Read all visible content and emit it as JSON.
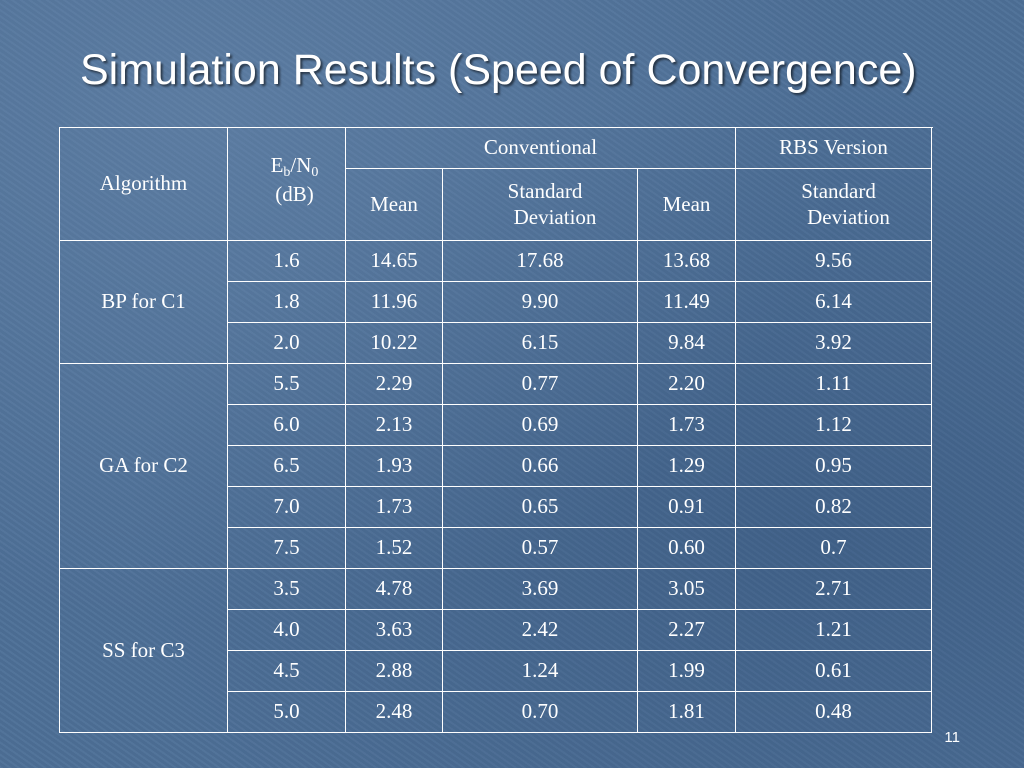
{
  "slide": {
    "title": "Simulation Results (Speed of Convergence)",
    "slide_number": "11"
  },
  "table": {
    "header": {
      "algorithm": "Algorithm",
      "ebn0_main": "E",
      "ebn0_sub_b": "b",
      "ebn0_slash": "/N",
      "ebn0_sub_0": "0",
      "ebn0_unit": "(dB)",
      "conventional": "Conventional",
      "rbs_version": "RBS Version",
      "mean": "Mean",
      "std_line1": "Standard",
      "std_line2": "Deviation"
    },
    "groups": [
      {
        "algorithm": "BP for C1",
        "rows": [
          {
            "ebn0": "1.6",
            "conv_mean": "14.65",
            "conv_std": "17.68",
            "rbs_mean": "13.68",
            "rbs_std": "9.56"
          },
          {
            "ebn0": "1.8",
            "conv_mean": "11.96",
            "conv_std": "9.90",
            "rbs_mean": "11.49",
            "rbs_std": "6.14"
          },
          {
            "ebn0": "2.0",
            "conv_mean": "10.22",
            "conv_std": "6.15",
            "rbs_mean": "9.84",
            "rbs_std": "3.92"
          }
        ]
      },
      {
        "algorithm": "GA for C2",
        "rows": [
          {
            "ebn0": "5.5",
            "conv_mean": "2.29",
            "conv_std": "0.77",
            "rbs_mean": "2.20",
            "rbs_std": "1.11"
          },
          {
            "ebn0": "6.0",
            "conv_mean": "2.13",
            "conv_std": "0.69",
            "rbs_mean": "1.73",
            "rbs_std": "1.12"
          },
          {
            "ebn0": "6.5",
            "conv_mean": "1.93",
            "conv_std": "0.66",
            "rbs_mean": "1.29",
            "rbs_std": "0.95"
          },
          {
            "ebn0": "7.0",
            "conv_mean": "1.73",
            "conv_std": "0.65",
            "rbs_mean": "0.91",
            "rbs_std": "0.82"
          },
          {
            "ebn0": "7.5",
            "conv_mean": "1.52",
            "conv_std": "0.57",
            "rbs_mean": "0.60",
            "rbs_std": "0.7"
          }
        ]
      },
      {
        "algorithm": "SS for C3",
        "rows": [
          {
            "ebn0": "3.5",
            "conv_mean": "4.78",
            "conv_std": "3.69",
            "rbs_mean": "3.05",
            "rbs_std": "2.71"
          },
          {
            "ebn0": "4.0",
            "conv_mean": "3.63",
            "conv_std": "2.42",
            "rbs_mean": "2.27",
            "rbs_std": "1.21"
          },
          {
            "ebn0": "4.5",
            "conv_mean": "2.88",
            "conv_std": "1.24",
            "rbs_mean": "1.99",
            "rbs_std": "0.61"
          },
          {
            "ebn0": "5.0",
            "conv_mean": "2.48",
            "conv_std": "0.70",
            "rbs_mean": "1.81",
            "rbs_std": "0.48"
          }
        ]
      }
    ]
  }
}
